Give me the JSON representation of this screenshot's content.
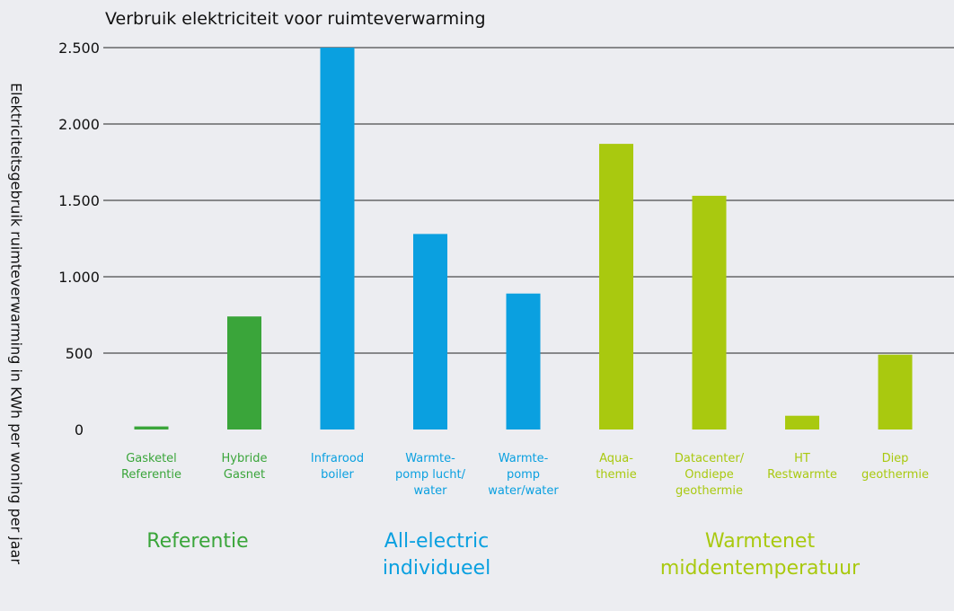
{
  "chart_data": {
    "type": "bar",
    "title": "Verbruik elektriciteit voor ruimteverwarming",
    "ylabel": "Elektriciteitsgebruik ruimteverwarming in KWh per woning per jaar",
    "ylim": [
      0,
      2500
    ],
    "yticks": [
      {
        "value": 0,
        "label": "0"
      },
      {
        "value": 500,
        "label": "500"
      },
      {
        "value": 1000,
        "label": "1.000"
      },
      {
        "value": 1500,
        "label": "1.500"
      },
      {
        "value": 2000,
        "label": "2.000"
      },
      {
        "value": 2500,
        "label": "2.500"
      }
    ],
    "grid": true,
    "categories": [
      "Gasketel Referentie",
      "Hybride Gasnet",
      "Infrarood boiler",
      "Warmte-pomp lucht/water",
      "Warmte-pomp water/water",
      "Aqua-themie",
      "Datacenter/ Ondiepe geothermie",
      "HT Restwarmte",
      "Diep geothermie"
    ],
    "category_lines": [
      [
        "Gasketel",
        "Referentie"
      ],
      [
        "Hybride",
        "Gasnet"
      ],
      [
        "Infrarood",
        "boiler"
      ],
      [
        "Warmte-",
        "pomp lucht/",
        "water"
      ],
      [
        "Warmte-",
        "pomp",
        "water/water"
      ],
      [
        "Aqua-",
        "themie"
      ],
      [
        "Datacenter/",
        "Ondiepe",
        "geothermie"
      ],
      [
        "HT",
        "Restwarmte"
      ],
      [
        "Diep",
        "geothermie"
      ]
    ],
    "values": [
      20,
      740,
      2500,
      1280,
      890,
      1870,
      1530,
      90,
      490
    ],
    "groups": [
      {
        "label": "Referentie",
        "color": "#3aa53a",
        "members": [
          0,
          1
        ]
      },
      {
        "label": "All-electric\nindividueel",
        "color": "#0aa0e0",
        "members": [
          2,
          3,
          4
        ]
      },
      {
        "label": "Warmtenet\nmiddentemperatuur",
        "color": "#a9c90f",
        "members": [
          5,
          6,
          7,
          8
        ]
      }
    ]
  }
}
